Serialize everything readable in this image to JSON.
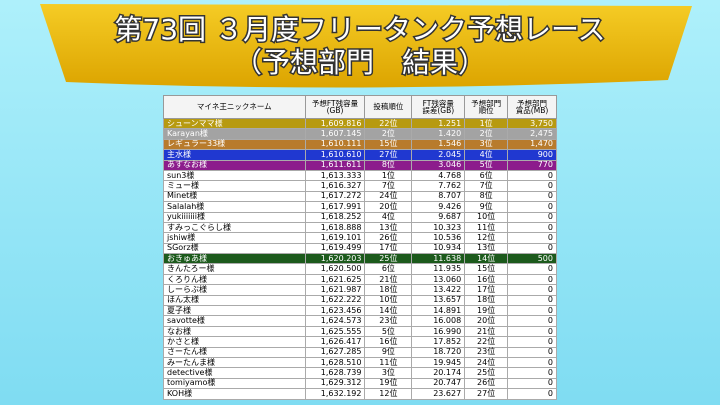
{
  "header": {
    "title": "第73回 ３月度フリータンク予想レース",
    "subtitle": "（予想部門　結果）"
  },
  "table": {
    "columns": [
      [
        "マイネ王ニックネーム"
      ],
      [
        "予想FT残容量",
        "(GB)"
      ],
      [
        "投稿順位"
      ],
      [
        "FT残容量",
        "誤差(GB)"
      ],
      [
        "予想部門",
        "順位"
      ],
      [
        "予想部門",
        "賞品(MB)"
      ]
    ],
    "rows": [
      {
        "cells": [
          "シューンママ様",
          "1,609.816",
          "22位",
          "1.251",
          "1位",
          "3,750"
        ],
        "color": "#b79a10"
      },
      {
        "cells": [
          "Karayan様",
          "1,607.145",
          "2位",
          "1.420",
          "2位",
          "2,475"
        ],
        "color": "#a3a3a3"
      },
      {
        "cells": [
          "レギュラー33様",
          "1,610.111",
          "15位",
          "1.546",
          "3位",
          "1,470"
        ],
        "color": "#b87b2c"
      },
      {
        "cells": [
          "主水様",
          "1,610.610",
          "27位",
          "2.045",
          "4位",
          "900"
        ],
        "color": "#2038d0"
      },
      {
        "cells": [
          "あすなお様",
          "1,611.611",
          "8位",
          "3.046",
          "5位",
          "770"
        ],
        "color": "#8c1c8c"
      },
      {
        "cells": [
          "sun3様",
          "1,613.333",
          "1位",
          "4.768",
          "6位",
          "0"
        ]
      },
      {
        "cells": [
          "ミュー様",
          "1,616.327",
          "7位",
          "7.762",
          "7位",
          "0"
        ]
      },
      {
        "cells": [
          "Minet様",
          "1,617.272",
          "24位",
          "8.707",
          "8位",
          "0"
        ]
      },
      {
        "cells": [
          "Salalah様",
          "1,617.991",
          "20位",
          "9.426",
          "9位",
          "0"
        ]
      },
      {
        "cells": [
          "yukiiiiiii様",
          "1,618.252",
          "4位",
          "9.687",
          "10位",
          "0"
        ]
      },
      {
        "cells": [
          "すみっこぐらし様",
          "1,618.888",
          "13位",
          "10.323",
          "11位",
          "0"
        ]
      },
      {
        "cells": [
          "jshiw様",
          "1,619.101",
          "26位",
          "10.536",
          "12位",
          "0"
        ]
      },
      {
        "cells": [
          "SGorz様",
          "1,619.499",
          "17位",
          "10.934",
          "13位",
          "0"
        ]
      },
      {
        "cells": [
          "おきゅあ様",
          "1,620.203",
          "25位",
          "11.638",
          "14位",
          "500"
        ],
        "color": "#1c5a1c"
      },
      {
        "cells": [
          "きんたろー様",
          "1,620.500",
          "6位",
          "11.935",
          "15位",
          "0"
        ]
      },
      {
        "cells": [
          "くろりん様",
          "1,621.625",
          "21位",
          "13.060",
          "16位",
          "0"
        ]
      },
      {
        "cells": [
          "しーらぶ様",
          "1,621.987",
          "18位",
          "13.422",
          "17位",
          "0"
        ]
      },
      {
        "cells": [
          "ほん太様",
          "1,622.222",
          "10位",
          "13.657",
          "18位",
          "0"
        ]
      },
      {
        "cells": [
          "夏子様",
          "1,623.456",
          "14位",
          "14.891",
          "19位",
          "0"
        ]
      },
      {
        "cells": [
          "savotte様",
          "1,624.573",
          "23位",
          "16.008",
          "20位",
          "0"
        ]
      },
      {
        "cells": [
          "なお様",
          "1,625.555",
          "5位",
          "16.990",
          "21位",
          "0"
        ]
      },
      {
        "cells": [
          "かさと様",
          "1,626.417",
          "16位",
          "17.852",
          "22位",
          "0"
        ]
      },
      {
        "cells": [
          "さーたん様",
          "1,627.285",
          "9位",
          "18.720",
          "23位",
          "0"
        ]
      },
      {
        "cells": [
          "みーたんま様",
          "1,628.510",
          "11位",
          "19.945",
          "24位",
          "0"
        ]
      },
      {
        "cells": [
          "detective様",
          "1,628.739",
          "3位",
          "20.174",
          "25位",
          "0"
        ]
      },
      {
        "cells": [
          "tomiyamo様",
          "1,629.312",
          "19位",
          "20.747",
          "26位",
          "0"
        ]
      },
      {
        "cells": [
          "KOH様",
          "1,632.192",
          "12位",
          "23.627",
          "27位",
          "0"
        ]
      }
    ]
  }
}
